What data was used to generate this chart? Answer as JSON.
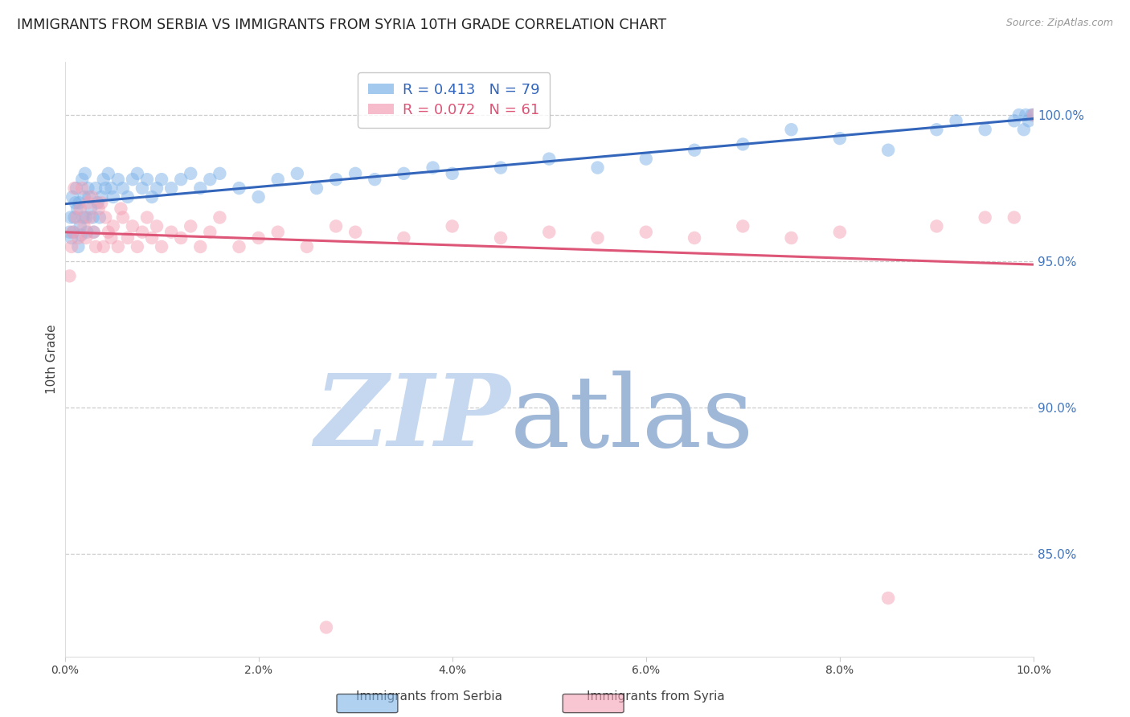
{
  "title": "IMMIGRANTS FROM SERBIA VS IMMIGRANTS FROM SYRIA 10TH GRADE CORRELATION CHART",
  "source": "Source: ZipAtlas.com",
  "ylabel": "10th Grade",
  "xlim": [
    0.0,
    10.0
  ],
  "ylim": [
    81.5,
    101.8
  ],
  "yticks": [
    85.0,
    90.0,
    95.0,
    100.0
  ],
  "ytick_labels": [
    "85.0%",
    "90.0%",
    "95.0%",
    "100.0%"
  ],
  "serbia_R": 0.413,
  "serbia_N": 79,
  "syria_R": 0.072,
  "syria_N": 61,
  "serbia_color": "#7EB3E8",
  "syria_color": "#F4A0B5",
  "serbia_line_color": "#3366BB",
  "syria_line_color": "#DD5577",
  "serbia_x": [
    0.05,
    0.06,
    0.07,
    0.08,
    0.09,
    0.1,
    0.11,
    0.12,
    0.13,
    0.14,
    0.15,
    0.16,
    0.17,
    0.18,
    0.19,
    0.2,
    0.21,
    0.22,
    0.23,
    0.24,
    0.25,
    0.27,
    0.29,
    0.3,
    0.32,
    0.34,
    0.36,
    0.38,
    0.4,
    0.42,
    0.45,
    0.48,
    0.5,
    0.55,
    0.6,
    0.65,
    0.7,
    0.75,
    0.8,
    0.85,
    0.9,
    0.95,
    1.0,
    1.1,
    1.2,
    1.3,
    1.4,
    1.5,
    1.6,
    1.8,
    2.0,
    2.2,
    2.4,
    2.6,
    2.8,
    3.0,
    3.2,
    3.5,
    3.8,
    4.0,
    4.5,
    5.0,
    5.5,
    6.0,
    6.5,
    7.0,
    7.5,
    8.0,
    8.5,
    9.0,
    9.2,
    9.5,
    9.8,
    9.85,
    9.9,
    9.92,
    9.95,
    9.98,
    10.0
  ],
  "serbia_y": [
    96.0,
    96.5,
    95.8,
    97.2,
    96.0,
    96.5,
    97.0,
    97.5,
    96.8,
    95.5,
    97.0,
    96.2,
    95.9,
    97.8,
    96.5,
    97.2,
    98.0,
    96.5,
    96.0,
    97.5,
    97.2,
    96.8,
    96.5,
    96.0,
    97.5,
    97.0,
    96.5,
    97.2,
    97.8,
    97.5,
    98.0,
    97.5,
    97.2,
    97.8,
    97.5,
    97.2,
    97.8,
    98.0,
    97.5,
    97.8,
    97.2,
    97.5,
    97.8,
    97.5,
    97.8,
    98.0,
    97.5,
    97.8,
    98.0,
    97.5,
    97.2,
    97.8,
    98.0,
    97.5,
    97.8,
    98.0,
    97.8,
    98.0,
    98.2,
    98.0,
    98.2,
    98.5,
    98.2,
    98.5,
    98.8,
    99.0,
    99.5,
    99.2,
    98.8,
    99.5,
    99.8,
    99.5,
    99.8,
    100.0,
    99.5,
    100.0,
    99.8,
    100.0,
    100.0
  ],
  "syria_x": [
    0.05,
    0.07,
    0.08,
    0.1,
    0.12,
    0.14,
    0.16,
    0.18,
    0.2,
    0.22,
    0.24,
    0.26,
    0.28,
    0.3,
    0.32,
    0.35,
    0.38,
    0.4,
    0.42,
    0.45,
    0.48,
    0.5,
    0.55,
    0.58,
    0.6,
    0.65,
    0.7,
    0.75,
    0.8,
    0.85,
    0.9,
    0.95,
    1.0,
    1.1,
    1.2,
    1.3,
    1.4,
    1.5,
    1.6,
    1.8,
    2.0,
    2.2,
    2.5,
    2.8,
    3.0,
    3.5,
    4.0,
    4.5,
    5.0,
    5.5,
    6.0,
    6.5,
    7.0,
    7.5,
    8.0,
    8.5,
    9.0,
    9.5,
    9.8,
    10.0,
    2.7
  ],
  "syria_y": [
    94.5,
    95.5,
    96.0,
    97.5,
    96.5,
    95.8,
    96.8,
    97.5,
    96.2,
    95.8,
    97.0,
    96.5,
    97.2,
    96.0,
    95.5,
    96.8,
    97.0,
    95.5,
    96.5,
    96.0,
    95.8,
    96.2,
    95.5,
    96.8,
    96.5,
    95.8,
    96.2,
    95.5,
    96.0,
    96.5,
    95.8,
    96.2,
    95.5,
    96.0,
    95.8,
    96.2,
    95.5,
    96.0,
    96.5,
    95.5,
    95.8,
    96.0,
    95.5,
    96.2,
    96.0,
    95.8,
    96.2,
    95.8,
    96.0,
    95.8,
    96.0,
    95.8,
    96.2,
    95.8,
    96.0,
    83.5,
    96.2,
    96.5,
    96.5,
    100.0,
    82.5
  ],
  "watermark_zip_color": "#C5D8F0",
  "watermark_atlas_color": "#A0B8D8",
  "background_color": "#FFFFFF",
  "grid_color": "#CCCCCC",
  "right_axis_color": "#4477BB",
  "title_fontsize": 12.5,
  "axis_label_fontsize": 11,
  "tick_fontsize": 10,
  "legend_fontsize": 13
}
